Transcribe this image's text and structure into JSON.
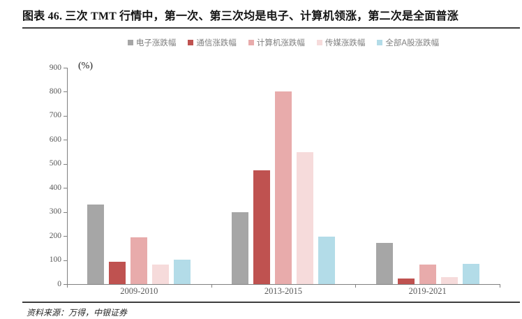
{
  "figure": {
    "title": "图表 46. 三次 TMT 行情中，第一次、第三次均是电子、计算机领涨，第二次是全面普涨",
    "source": "资料来源：万得，中银证券"
  },
  "chart_data": {
    "type": "bar",
    "title": "",
    "unit_label": "(%)",
    "xlabel": "",
    "ylabel": "(%)",
    "categories": [
      "2009-2010",
      "2013-2015",
      "2019-2021"
    ],
    "series": [
      {
        "name": "电子涨跌幅",
        "color": "#A6A6A6",
        "values": [
          330,
          300,
          170
        ]
      },
      {
        "name": "通信涨跌幅",
        "color": "#BF5250",
        "values": [
          92,
          472,
          22
        ]
      },
      {
        "name": "计算机涨跌幅",
        "color": "#E8ABAB",
        "values": [
          195,
          800,
          80
        ]
      },
      {
        "name": "传媒涨跌幅",
        "color": "#F6DBDB",
        "values": [
          80,
          548,
          30
        ]
      },
      {
        "name": "全部A股涨跌幅",
        "color": "#B3DCE8",
        "values": [
          102,
          196,
          85
        ]
      }
    ],
    "ylim": [
      0,
      900
    ],
    "ytick_step": 100,
    "ytick_labels": [
      "0",
      "100",
      "200",
      "300",
      "400",
      "500",
      "600",
      "700",
      "800",
      "900"
    ],
    "grid": "off",
    "legend_position": "top",
    "axis_color": "#808080",
    "label_color": "#595959"
  }
}
